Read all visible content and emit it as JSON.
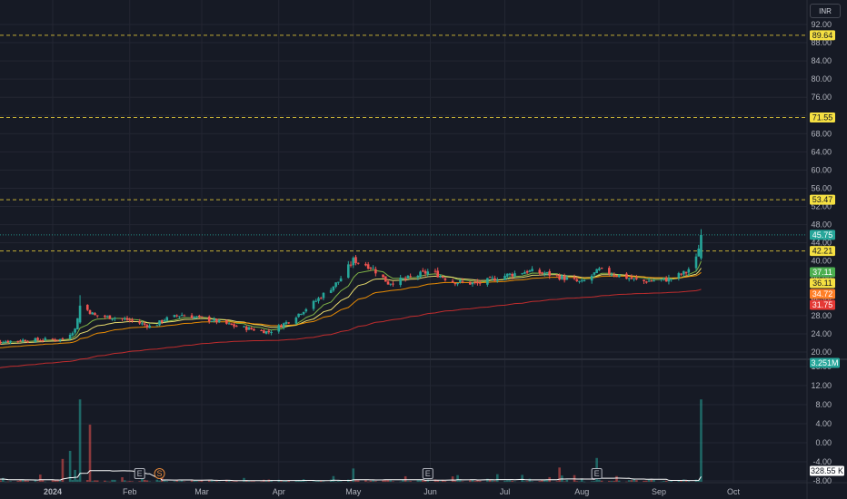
{
  "currency_button": "INR",
  "colors": {
    "background": "#161a25",
    "grid": "#232632",
    "up": "#26a69a",
    "down": "#ef5350",
    "level_line": "#f0d33a",
    "ema_fast": "#8bc34a",
    "ema_mid": "#fff176",
    "ema_slow": "#ff9800",
    "ema_long": "#d32f2f",
    "vol_ma": "#ffffff"
  },
  "chart_data": {
    "type": "candlestick",
    "price_axis": {
      "ticks": [
        "92.00",
        "88.00",
        "84.00",
        "80.00",
        "76.00",
        "72.00",
        "68.00",
        "64.00",
        "60.00",
        "56.00",
        "52.00",
        "48.00",
        "44.00",
        "40.00",
        "36.00",
        "32.00",
        "28.00",
        "24.00",
        "20.00"
      ],
      "ylim": [
        19,
        94
      ]
    },
    "volume_axis": {
      "ticks": [
        "16.00",
        "12.00",
        "8.00",
        "4.00",
        "0.00",
        "-4.00",
        "-8.00"
      ],
      "ylim": [
        -9.5,
        17.5
      ],
      "last_volume_label": "3.251M",
      "volume_ma_label": "328.55 K"
    },
    "time_axis": {
      "labels": [
        "2024",
        "Feb",
        "Mar",
        "Apr",
        "May",
        "Jun",
        "Jul",
        "Aug",
        "Sep",
        "Oct"
      ],
      "label_dates": [
        "2024-01-01",
        "2024-02-01",
        "2024-03-01",
        "2024-04-01",
        "2024-05-01",
        "2024-06-01",
        "2024-07-01",
        "2024-08-01",
        "2024-09-01",
        "2024-10-01"
      ]
    },
    "horizontal_levels": [
      {
        "value": 89.64,
        "label": "89.64"
      },
      {
        "value": 71.55,
        "label": "71.55"
      },
      {
        "value": 53.47,
        "label": "53.47"
      },
      {
        "value": 42.21,
        "label": "42.21"
      }
    ],
    "last_price": {
      "value": 45.75,
      "label": "45.75"
    },
    "moving_average_labels": [
      {
        "value": 37.11,
        "label": "37.11",
        "color": "#4caf50"
      },
      {
        "value": 36.11,
        "label": "36.11",
        "color": "#f5e042"
      },
      {
        "value": 34.72,
        "label": "34.72",
        "color": "#ff7f27"
      },
      {
        "value": 31.75,
        "label": "31.75",
        "color": "#e53935"
      }
    ],
    "events": [
      {
        "date": "2024-02-05",
        "label": "E"
      },
      {
        "date": "2024-02-13",
        "label": "S"
      },
      {
        "date": "2024-05-31",
        "label": "E"
      },
      {
        "date": "2024-08-07",
        "label": "E"
      }
    ],
    "price_path": [
      [
        "2023-12-01",
        22.0
      ],
      [
        "2023-12-20",
        22.6
      ],
      [
        "2024-01-05",
        22.8
      ],
      [
        "2024-01-10",
        25.0
      ],
      [
        "2024-01-12",
        30.5
      ],
      [
        "2024-01-18",
        28.0
      ],
      [
        "2024-01-25",
        27.6
      ],
      [
        "2024-02-01",
        27.0
      ],
      [
        "2024-02-10",
        25.5
      ],
      [
        "2024-02-15",
        27.2
      ],
      [
        "2024-02-22",
        28.2
      ],
      [
        "2024-03-05",
        27.0
      ],
      [
        "2024-03-15",
        25.6
      ],
      [
        "2024-03-28",
        24.4
      ],
      [
        "2024-04-05",
        26.8
      ],
      [
        "2024-04-15",
        30.8
      ],
      [
        "2024-04-25",
        35.5
      ],
      [
        "2024-05-01",
        40.2
      ],
      [
        "2024-05-08",
        38.8
      ],
      [
        "2024-05-15",
        35.2
      ],
      [
        "2024-05-22",
        36.0
      ],
      [
        "2024-06-01",
        37.8
      ],
      [
        "2024-06-10",
        35.5
      ],
      [
        "2024-06-20",
        35.0
      ],
      [
        "2024-07-01",
        36.8
      ],
      [
        "2024-07-10",
        37.8
      ],
      [
        "2024-07-20",
        37.0
      ],
      [
        "2024-08-01",
        35.2
      ],
      [
        "2024-08-08",
        38.0
      ],
      [
        "2024-08-15",
        37.0
      ],
      [
        "2024-08-25",
        35.5
      ],
      [
        "2024-09-05",
        36.0
      ],
      [
        "2024-09-12",
        37.5
      ],
      [
        "2024-09-16",
        40.5
      ],
      [
        "2024-09-18",
        45.75
      ]
    ],
    "volume_spikes": [
      {
        "date": "2024-01-05",
        "value": 4.8
      },
      {
        "date": "2024-01-08",
        "value": 6.5
      },
      {
        "date": "2024-01-12",
        "value": 17.3
      },
      {
        "date": "2024-01-16",
        "value": 12.0
      },
      {
        "date": "2024-01-10",
        "value": 2.5
      },
      {
        "date": "2024-04-23",
        "value": 1.2
      },
      {
        "date": "2024-05-01",
        "value": 2.8
      },
      {
        "date": "2024-06-28",
        "value": 1.6
      },
      {
        "date": "2024-07-23",
        "value": 3.0
      },
      {
        "date": "2024-08-07",
        "value": 5.0
      },
      {
        "date": "2024-09-18",
        "value": 17.3
      }
    ]
  }
}
